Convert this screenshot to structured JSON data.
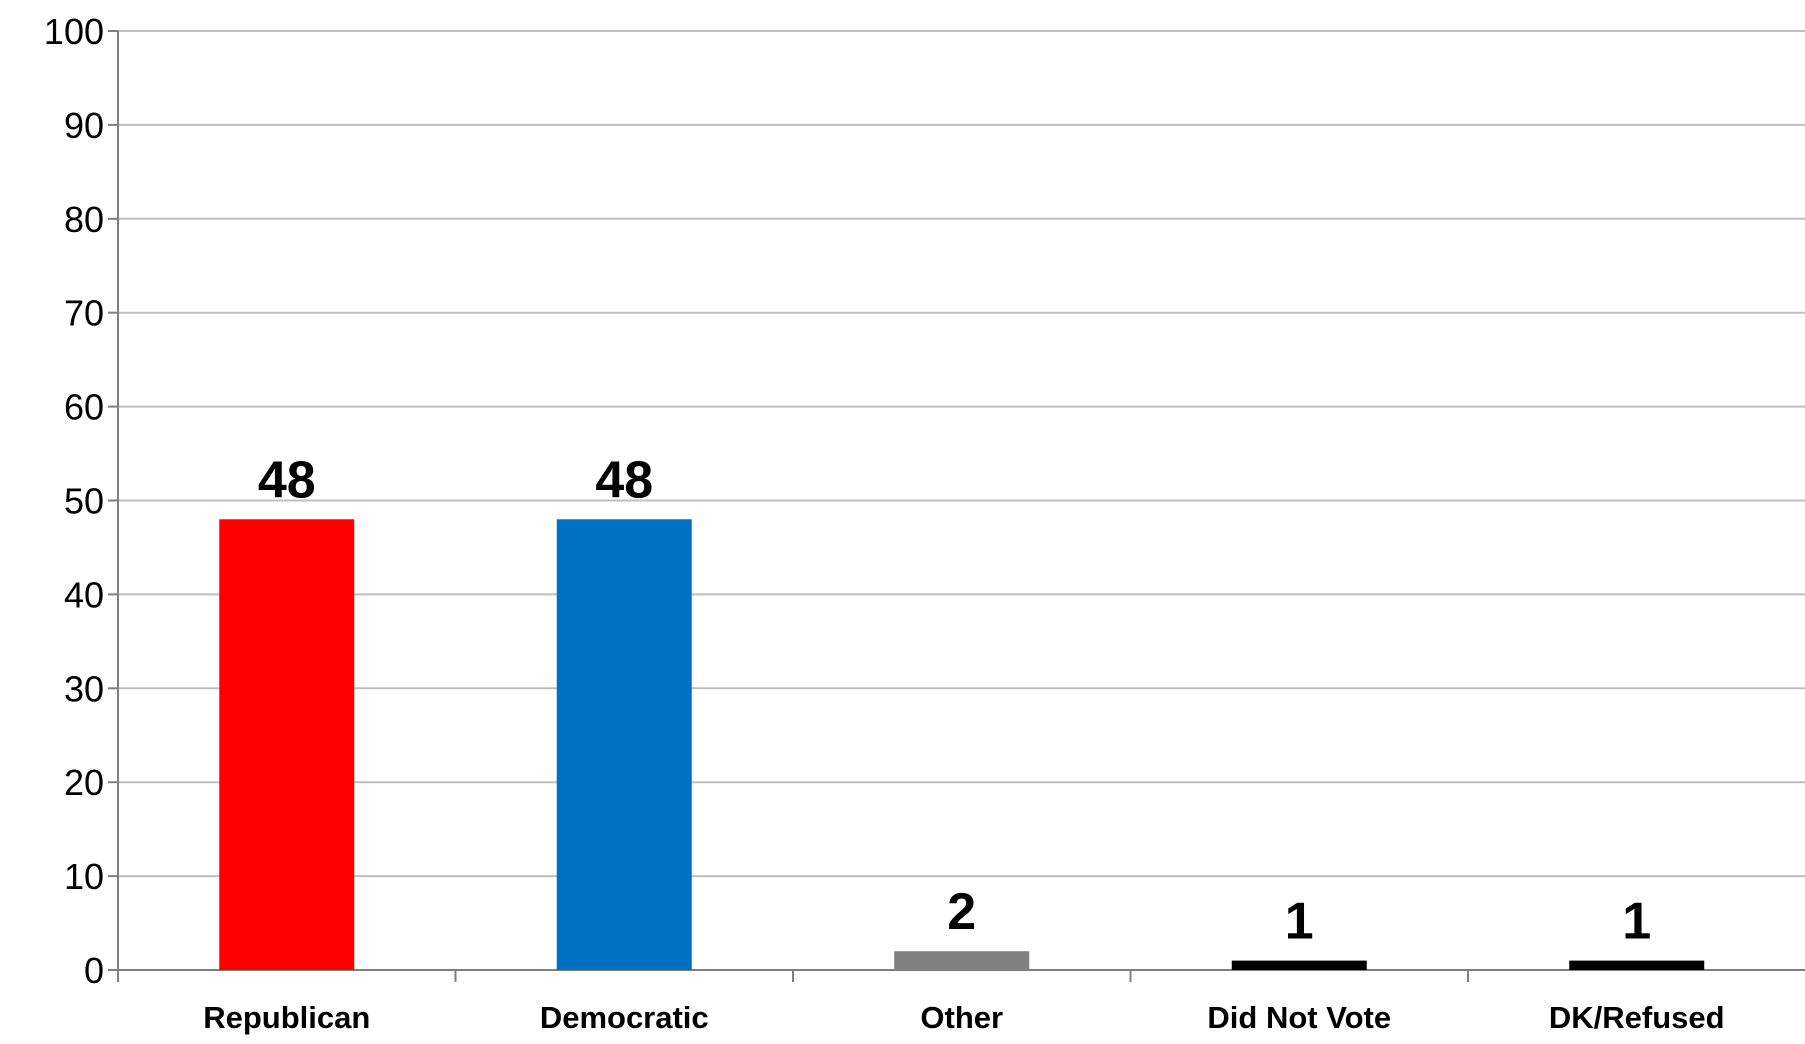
{
  "chart_data": {
    "type": "bar",
    "title": "",
    "xlabel": "",
    "ylabel": "",
    "categories": [
      "Republican",
      "Democratic",
      "Other",
      "Did Not Vote",
      "DK/Refused"
    ],
    "values": [
      48,
      48,
      2,
      1,
      1
    ],
    "data_labels": [
      "48",
      "48",
      "2",
      "1",
      "1"
    ],
    "colors": [
      "#ff0000",
      "#0070c0",
      "#808080",
      "#000000",
      "#000000"
    ],
    "ylim": [
      0,
      100
    ],
    "yticks": [
      0,
      10,
      20,
      30,
      40,
      50,
      60,
      70,
      80,
      90,
      100
    ],
    "ytick_labels": [
      "0",
      "10",
      "20",
      "30",
      "40",
      "50",
      "60",
      "70",
      "80",
      "90",
      "100"
    ],
    "grid": true,
    "legend": "none"
  }
}
